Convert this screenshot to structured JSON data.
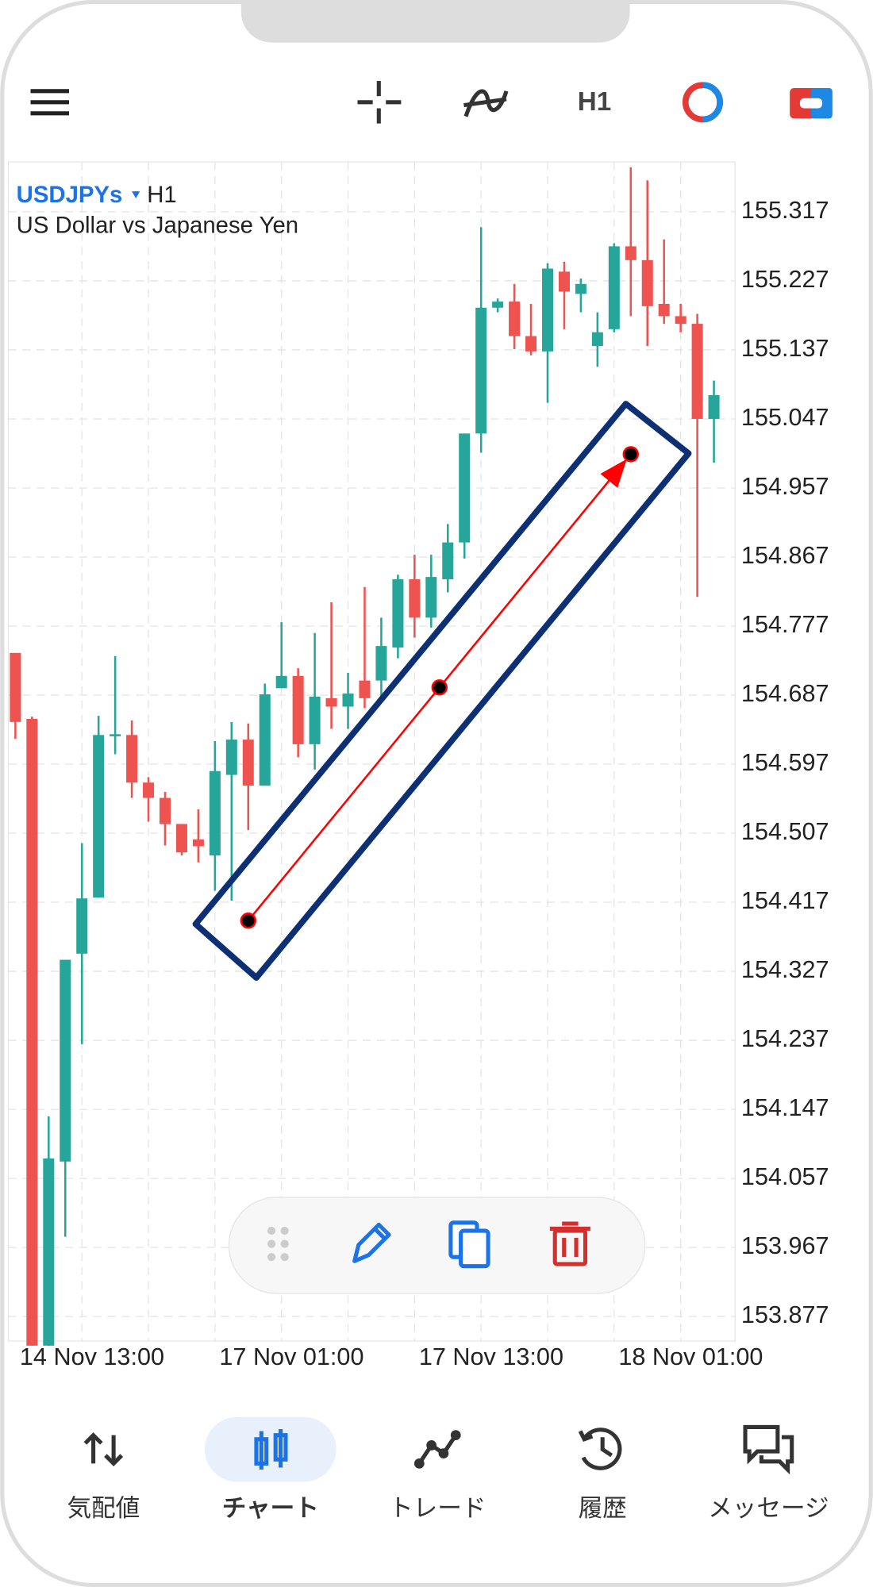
{
  "toolbar": {
    "timeframe": "H1"
  },
  "chart_data": {
    "type": "candlestick",
    "symbol": "USDJPYs",
    "timeframe": "H1",
    "description": "US Dollar vs Japanese Yen",
    "up_color": "#26a69a",
    "down_color": "#ef5350",
    "grid": true,
    "categories": [
      null,
      null,
      null,
      null,
      "14 Nov 13:00",
      null,
      null,
      null,
      null,
      null,
      null,
      null,
      null,
      null,
      null,
      null,
      "17 Nov 01:00",
      null,
      null,
      null,
      null,
      null,
      null,
      null,
      null,
      null,
      null,
      null,
      "17 Nov 13:00",
      null,
      null,
      null,
      null,
      null,
      null,
      null,
      null,
      null,
      null,
      null,
      "18 Nov 01:00",
      null,
      null
    ],
    "open": [
      154.742,
      154.656,
      153.839,
      154.079,
      154.35,
      154.423,
      154.634,
      154.635,
      154.573,
      154.553,
      154.519,
      154.499,
      154.478,
      154.583,
      154.629,
      154.569,
      154.696,
      154.712,
      154.623,
      154.683,
      154.672,
      154.706,
      154.706,
      154.749,
      154.838,
      154.788,
      154.838,
      154.886,
      155.028,
      155.192,
      155.2,
      155.155,
      155.135,
      155.239,
      155.21,
      155.142,
      155.164,
      155.272,
      155.254,
      155.197,
      155.181,
      155.171,
      155.047
    ],
    "close": [
      154.652,
      153.839,
      154.083,
      154.342,
      154.422,
      154.635,
      154.636,
      154.573,
      154.553,
      154.519,
      154.482,
      154.49,
      154.588,
      154.629,
      154.569,
      154.688,
      154.712,
      154.623,
      154.685,
      154.672,
      154.689,
      154.683,
      154.751,
      154.838,
      154.788,
      154.841,
      154.886,
      155.028,
      155.192,
      155.2,
      155.155,
      155.135,
      155.243,
      155.213,
      155.223,
      155.16,
      155.272,
      155.254,
      155.194,
      155.181,
      155.171,
      155.047,
      155.078
    ],
    "high": [
      154.742,
      154.659,
      154.138,
      154.342,
      154.494,
      154.66,
      154.738,
      154.654,
      154.58,
      154.561,
      154.519,
      154.538,
      154.627,
      154.652,
      154.65,
      154.702,
      154.782,
      154.722,
      154.768,
      154.808,
      154.716,
      154.828,
      154.788,
      154.844,
      154.87,
      154.87,
      154.91,
      155.028,
      155.297,
      155.204,
      155.223,
      155.197,
      155.25,
      155.252,
      155.23,
      155.186,
      155.276,
      155.375,
      155.358,
      155.281,
      155.197,
      155.184,
      155.097
    ],
    "low": [
      154.63,
      153.839,
      153.839,
      153.981,
      154.232,
      154.423,
      154.61,
      154.553,
      154.522,
      154.491,
      154.478,
      154.469,
      154.432,
      154.419,
      154.511,
      154.569,
      154.696,
      154.606,
      154.59,
      154.643,
      154.643,
      154.67,
      154.683,
      154.735,
      154.762,
      154.775,
      154.821,
      154.865,
      155.003,
      155.186,
      155.138,
      155.13,
      155.068,
      155.164,
      155.186,
      155.115,
      155.16,
      155.181,
      155.142,
      155.171,
      155.16,
      154.815,
      154.99
    ],
    "ylim": [
      153.845,
      155.382
    ],
    "yticks": [
      155.317,
      155.227,
      155.137,
      155.047,
      154.957,
      154.867,
      154.777,
      154.687,
      154.597,
      154.507,
      154.417,
      154.327,
      154.237,
      154.147,
      154.057,
      153.967,
      153.877
    ],
    "trendline": {
      "color": "#ff0000",
      "x": [
        14,
        37
      ],
      "y": [
        154.393,
        155.001
      ]
    }
  },
  "nav": [
    "気配値",
    "チャート",
    "トレード",
    "履歴",
    "メッセージ"
  ]
}
